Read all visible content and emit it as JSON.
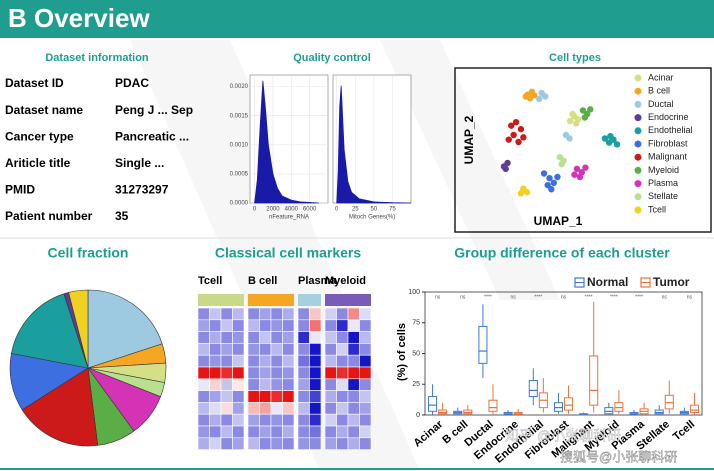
{
  "header": {
    "title": "B  Overview"
  },
  "dataset_info": {
    "title": "Dataset information",
    "rows": [
      [
        "Dataset ID",
        "PDAC"
      ],
      [
        "Dataset name",
        "Peng J ... Sep"
      ],
      [
        "Cancer type",
        "Pancreatic ..."
      ],
      [
        "Ariticle title",
        "Single ..."
      ],
      [
        "PMID",
        "31273297"
      ],
      [
        "Patient number",
        "35"
      ]
    ]
  },
  "quality_control": {
    "title": "Quality control",
    "charts": [
      {
        "type": "area",
        "xlabel": "nFeature_RNA",
        "color": "#1a1aa8",
        "x": [
          0,
          300,
          600,
          900,
          1200,
          1500,
          2000,
          2500,
          3000,
          4000,
          5000,
          6000,
          7000
        ],
        "y": [
          0,
          0.0004,
          0.0013,
          0.0021,
          0.0016,
          0.001,
          0.0005,
          0.00025,
          0.00012,
          5e-05,
          2e-05,
          1e-05,
          0
        ],
        "xlim": [
          -500,
          8000
        ],
        "ylim": [
          0,
          0.0022
        ],
        "xticks": [
          0,
          2000,
          4000,
          6000
        ],
        "yticks": [
          {
            "value": 0,
            "label": "0.0000"
          },
          {
            "value": 0.0005,
            "label": "0.0005"
          },
          {
            "value": 0.001,
            "label": "0.0010"
          },
          {
            "value": 0.0015,
            "label": "0.0015"
          },
          {
            "value": 0.002,
            "label": "0.0020"
          }
        ]
      },
      {
        "type": "area",
        "xlabel": "Mitoch Genes(%)",
        "color": "#1a1aa8",
        "x": [
          0,
          2,
          4,
          6,
          8,
          10,
          15,
          20,
          30,
          50,
          75,
          100
        ],
        "y": [
          0,
          0.03,
          0.09,
          0.11,
          0.08,
          0.05,
          0.02,
          0.01,
          0.004,
          0.001,
          0.0003,
          0
        ],
        "xlim": [
          -5,
          100
        ],
        "ylim": [
          0,
          0.12
        ],
        "xticks": [
          0,
          25,
          50,
          75
        ]
      }
    ]
  },
  "cell_types": {
    "title": "Cell types",
    "type": "scatter",
    "xlabel": "UMAP_1",
    "ylabel": "UMAP_2",
    "xlim": [
      -12,
      12
    ],
    "ylim": [
      -12,
      12
    ],
    "series": [
      {
        "name": "Acinar",
        "color": "#d4df86",
        "x": [
          2.5,
          3.2,
          3.8,
          2.9,
          3.5
        ],
        "y": [
          3.6,
          4.4,
          3.9,
          4.8,
          3.2
        ]
      },
      {
        "name": "B cell",
        "color": "#f5a623",
        "x": [
          -4.5,
          -3.8,
          -4.1,
          -3.4,
          -4.8
        ],
        "y": [
          8.1,
          8.6,
          7.5,
          8.0,
          7.8
        ]
      },
      {
        "name": "Ductal",
        "color": "#9ecae1",
        "x": [
          -2.2,
          -1.6,
          -2.6,
          1.8,
          2.4
        ],
        "y": [
          8.4,
          7.8,
          7.4,
          1.2,
          0.6
        ]
      },
      {
        "name": "Endocrine",
        "color": "#5e3c99",
        "x": [
          -8.4,
          -7.8,
          -8.1
        ],
        "y": [
          -4.2,
          -3.6,
          -4.6
        ]
      },
      {
        "name": "Endothelial",
        "color": "#1b9e9e",
        "x": [
          8.2,
          8.9,
          9.6,
          9.1,
          10.2
        ],
        "y": [
          0.6,
          -0.1,
          0.4,
          1.0,
          -0.4
        ]
      },
      {
        "name": "Fibroblast",
        "color": "#3d6fe0",
        "x": [
          -1.8,
          -0.9,
          -0.2,
          -1.2,
          0.4,
          -0.6
        ],
        "y": [
          -5.4,
          -6.2,
          -7.0,
          -7.4,
          -6.0,
          -8.1
        ]
      },
      {
        "name": "Malignant",
        "color": "#cc1a1a",
        "x": [
          -7.2,
          -6.4,
          -5.6,
          -6.8,
          -5.2,
          -6.0,
          -7.6
        ],
        "y": [
          2.8,
          3.4,
          2.2,
          1.2,
          0.8,
          0.0,
          0.4
        ]
      },
      {
        "name": "Myeloid",
        "color": "#5aae45",
        "x": [
          4.6,
          5.3,
          5.8,
          4.9
        ],
        "y": [
          5.4,
          4.8,
          5.6,
          4.2
        ]
      },
      {
        "name": "Plasma",
        "color": "#d433b5",
        "x": [
          3.6,
          4.4,
          5.0,
          4.1,
          3.2
        ],
        "y": [
          -4.6,
          -5.2,
          -4.4,
          -6.0,
          -5.6
        ]
      },
      {
        "name": "Stellate",
        "color": "#b9e08e",
        "x": [
          0.8,
          1.4,
          1.1
        ],
        "y": [
          -2.6,
          -3.2,
          -3.8
        ]
      },
      {
        "name": "Tcell",
        "color": "#f0d020",
        "x": [
          -5.2,
          -4.6,
          -5.6
        ],
        "y": [
          -8.0,
          -8.6,
          -8.8
        ]
      }
    ]
  },
  "cell_fraction": {
    "title": "Cell fraction",
    "type": "pie",
    "values": [
      20,
      4,
      4,
      3,
      9,
      8,
      18,
      12,
      17,
      1,
      4
    ],
    "colors": [
      "#9ecae1",
      "#f5a623",
      "#d4df86",
      "#b9e08e",
      "#d433b5",
      "#5aae45",
      "#cc1a1a",
      "#3d6fe0",
      "#1b9e9e",
      "#5e3c99",
      "#f0d020"
    ]
  },
  "cell_markers": {
    "title": "Classical cell markers",
    "type": "heatmap",
    "groups": [
      {
        "name": "Tcell",
        "color": "#c9d98a",
        "values": [
          [
            -1,
            -0.5,
            -1,
            -0.6
          ],
          [
            -0.8,
            -1,
            -0.5,
            -1
          ],
          [
            -1,
            -0.7,
            -1,
            -0.9
          ],
          [
            -0.6,
            -1,
            -0.8,
            -1
          ],
          [
            -1,
            -0.9,
            -1,
            -0.5
          ],
          [
            2,
            2,
            1.8,
            2
          ],
          [
            -0.2,
            0.4,
            -0.5,
            0.2
          ],
          [
            -1,
            -0.8,
            -0.5,
            -1
          ],
          [
            -0.6,
            -0.3,
            0.3,
            -0.8
          ],
          [
            -1,
            -0.7,
            -1,
            -0.5
          ],
          [
            -0.9,
            -1,
            -0.6,
            -1
          ],
          [
            -0.7,
            -0.4,
            -1,
            -0.8
          ]
        ]
      },
      {
        "name": "B cell",
        "color": "#f5a623",
        "values": [
          [
            -1,
            -0.8,
            -1,
            -0.7
          ],
          [
            -0.6,
            -1,
            -0.9,
            -1
          ],
          [
            -1,
            -0.5,
            -1,
            -0.8
          ],
          [
            -0.9,
            -1,
            -0.6,
            -1
          ],
          [
            -1,
            -0.7,
            -1,
            -0.6
          ],
          [
            -1,
            -0.8,
            -1,
            -0.9
          ],
          [
            -1,
            -0.6,
            -0.9,
            -1
          ],
          [
            2,
            2,
            1.8,
            2
          ],
          [
            0.6,
            0.8,
            -0.2,
            0.5
          ],
          [
            -0.8,
            -1,
            -0.9,
            -1
          ],
          [
            -1,
            -0.8,
            -1,
            -0.7
          ],
          [
            -0.6,
            -1,
            -0.9,
            -1
          ]
        ]
      },
      {
        "name": "Plasma",
        "color": "#a6cfe0",
        "values": [
          [
            -1,
            0.5
          ],
          [
            -1,
            1.2
          ],
          [
            -1.8,
            -0.2
          ],
          [
            -1,
            -2
          ],
          [
            -1.2,
            -2
          ],
          [
            -1,
            -2
          ],
          [
            -0.8,
            -2
          ],
          [
            -1,
            -1.6
          ],
          [
            -0.6,
            -2
          ],
          [
            -1,
            -1.8
          ],
          [
            -1,
            -1.2
          ],
          [
            -0.9,
            -1
          ]
        ]
      },
      {
        "name": "Myeloid",
        "color": "#7a5cb8",
        "values": [
          [
            -0.4,
            -1,
            1,
            -0.3
          ],
          [
            -1,
            -1.8,
            -0.2,
            -1
          ],
          [
            -0.5,
            -1,
            -2,
            -0.6
          ],
          [
            -1,
            -0.4,
            -1.8,
            -1
          ],
          [
            -0.6,
            -1,
            -1,
            -2
          ],
          [
            2,
            1.8,
            2,
            2
          ],
          [
            -1,
            -0.3,
            -2,
            -1
          ],
          [
            -0.7,
            -1,
            -1,
            -0.5
          ],
          [
            -1,
            -0.5,
            -1,
            -0.8
          ],
          [
            -0.4,
            -1,
            -0.6,
            -1
          ],
          [
            -1,
            -0.7,
            -1,
            -0.4
          ],
          [
            -0.8,
            -1,
            -0.7,
            -1
          ]
        ]
      }
    ]
  },
  "group_difference": {
    "title": "Group difference of each cluster",
    "type": "box",
    "ylabel": "(%) of cells",
    "legend": "top-right",
    "categories": [
      "Acinar",
      "B cell",
      "Ductal",
      "Endocrine",
      "Endothelial",
      "Fibroblast",
      "Malignant",
      "Myeloid",
      "Plasma",
      "Stellate",
      "Tcell"
    ],
    "ylim": [
      0,
      100
    ],
    "yticks": [
      0,
      25,
      50,
      75,
      100
    ],
    "significance": [
      "ns",
      "ns",
      "****",
      "ns",
      "****",
      "ns",
      "****",
      "****",
      "****",
      "ns",
      "ns"
    ],
    "series": [
      {
        "name": "Normal",
        "color": "#3a7bd5",
        "values": [
          [
            0,
            3,
            8,
            15,
            25
          ],
          [
            0,
            1,
            2,
            3,
            6
          ],
          [
            30,
            42,
            52,
            72,
            90
          ],
          [
            0,
            0.5,
            1,
            2,
            4
          ],
          [
            8,
            15,
            20,
            28,
            38
          ],
          [
            1,
            3,
            6,
            10,
            18
          ],
          [
            0,
            0,
            0.5,
            1,
            2
          ],
          [
            0,
            1,
            3,
            6,
            10
          ],
          [
            0,
            0.5,
            1,
            2,
            4
          ],
          [
            0,
            1,
            2,
            4,
            8
          ],
          [
            0,
            1,
            2,
            3,
            6
          ]
        ]
      },
      {
        "name": "Tumor",
        "color": "#e8743b",
        "values": [
          [
            0,
            1,
            2,
            4,
            10
          ],
          [
            0,
            1,
            2,
            4,
            8
          ],
          [
            0,
            3,
            6,
            12,
            25
          ],
          [
            0,
            0.5,
            1,
            2,
            5
          ],
          [
            2,
            6,
            12,
            18,
            30
          ],
          [
            1,
            4,
            8,
            14,
            24
          ],
          [
            2,
            8,
            20,
            48,
            92
          ],
          [
            1,
            3,
            6,
            10,
            20
          ],
          [
            0,
            1,
            3,
            5,
            10
          ],
          [
            1,
            5,
            10,
            16,
            28
          ],
          [
            0,
            2,
            4,
            8,
            18
          ]
        ]
      }
    ]
  },
  "watermarks": [
    "知乎 @小张聊科研",
    "搜狐号@小张聊科研"
  ]
}
